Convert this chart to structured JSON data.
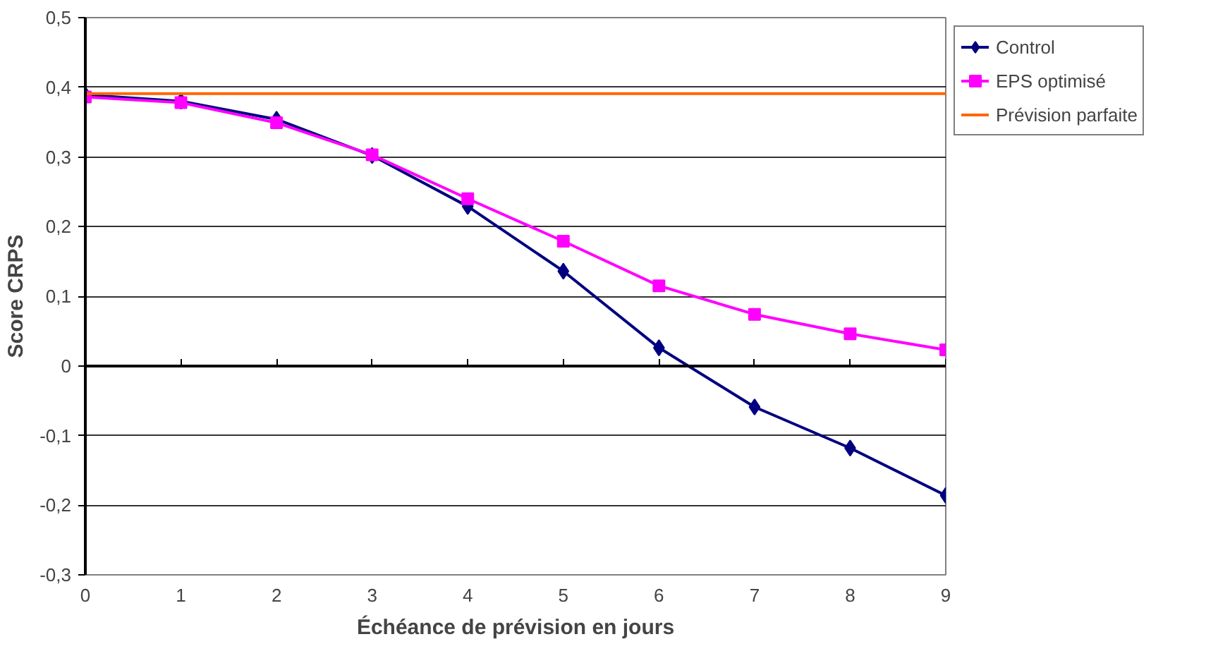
{
  "chart_data": {
    "type": "line",
    "xlabel": "Échéance de prévision en jours",
    "ylabel": "Score CRPS",
    "x": [
      0,
      1,
      2,
      3,
      4,
      5,
      6,
      7,
      8,
      9
    ],
    "series": [
      {
        "name": "Control",
        "color": "#000080",
        "marker": "diamond",
        "values": [
          0.389,
          0.38,
          0.354,
          0.302,
          0.229,
          0.136,
          0.026,
          -0.059,
          -0.118,
          -0.186
        ]
      },
      {
        "name": "EPS optimisé",
        "color": "#ff00ff",
        "marker": "square",
        "values": [
          0.386,
          0.378,
          0.349,
          0.303,
          0.24,
          0.179,
          0.115,
          0.074,
          0.046,
          0.023
        ]
      },
      {
        "name": "Prévision parfaite",
        "color": "#ff6600",
        "marker": "none",
        "values": [
          0.391,
          0.391,
          0.391,
          0.391,
          0.391,
          0.391,
          0.391,
          0.391,
          0.391,
          0.391
        ]
      }
    ],
    "xlim": [
      0,
      9
    ],
    "xticks": [
      0,
      1,
      2,
      3,
      4,
      5,
      6,
      7,
      8,
      9
    ],
    "ylim": [
      -0.3,
      0.5
    ],
    "yticks": [
      {
        "value": -0.3,
        "label": "-0,3"
      },
      {
        "value": -0.2,
        "label": "-0,2"
      },
      {
        "value": -0.1,
        "label": "-0,1"
      },
      {
        "value": 0,
        "label": "0"
      },
      {
        "value": 0.1,
        "label": "0,1"
      },
      {
        "value": 0.2,
        "label": "0,2"
      },
      {
        "value": 0.3,
        "label": "0,3"
      },
      {
        "value": 0.4,
        "label": "0,4"
      },
      {
        "value": 0.5,
        "label": "0,5"
      }
    ],
    "grid": "y",
    "legend": "right"
  }
}
